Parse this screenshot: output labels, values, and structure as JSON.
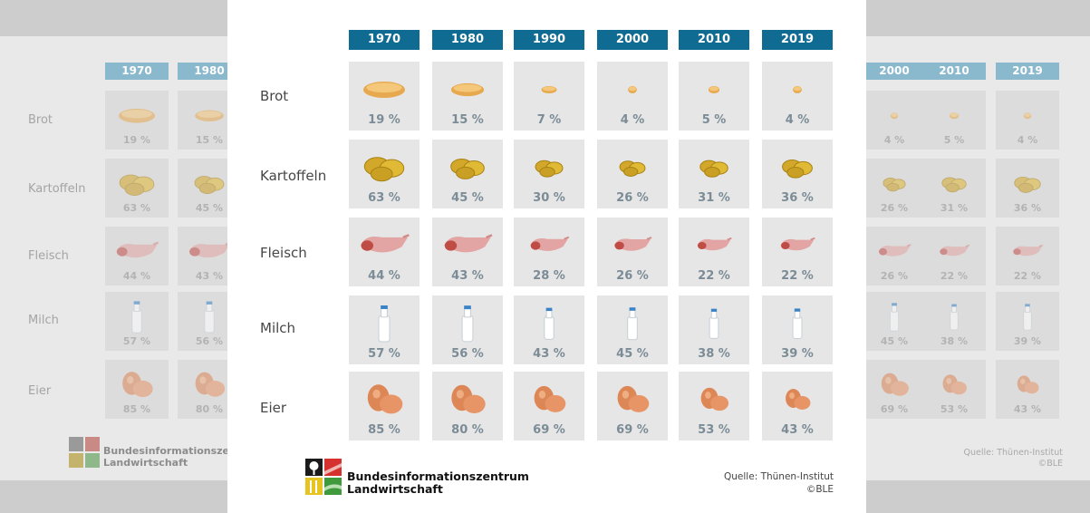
{
  "years": [
    "1970",
    "1980",
    "1990",
    "2000",
    "2010",
    "2019"
  ],
  "chart_data": {
    "type": "table",
    "categories": [
      "1970",
      "1980",
      "1990",
      "2000",
      "2010",
      "2019"
    ],
    "unit": "%",
    "series": [
      {
        "name": "Brot",
        "icon": "bread-icon",
        "values": [
          19,
          15,
          7,
          4,
          5,
          4
        ]
      },
      {
        "name": "Kartoffeln",
        "icon": "potato-icon",
        "values": [
          63,
          45,
          30,
          26,
          31,
          36
        ]
      },
      {
        "name": "Fleisch",
        "icon": "meat-icon",
        "values": [
          44,
          43,
          28,
          26,
          22,
          22
        ]
      },
      {
        "name": "Milch",
        "icon": "milk-bottle-icon",
        "values": [
          57,
          56,
          43,
          45,
          38,
          39
        ]
      },
      {
        "name": "Eier",
        "icon": "egg-icon",
        "values": [
          85,
          80,
          69,
          69,
          53,
          43
        ]
      }
    ]
  },
  "footer": {
    "org_line1": "Bundesinformationszentrum",
    "org_line2": "Landwirtschaft",
    "source": "Quelle: Thünen-Institut",
    "copyright": "©BLE"
  },
  "colors": {
    "header": "#0f6b92",
    "cell": "#e6e6e6",
    "percent_text": "#7b8c96",
    "row_label": "#474747"
  }
}
